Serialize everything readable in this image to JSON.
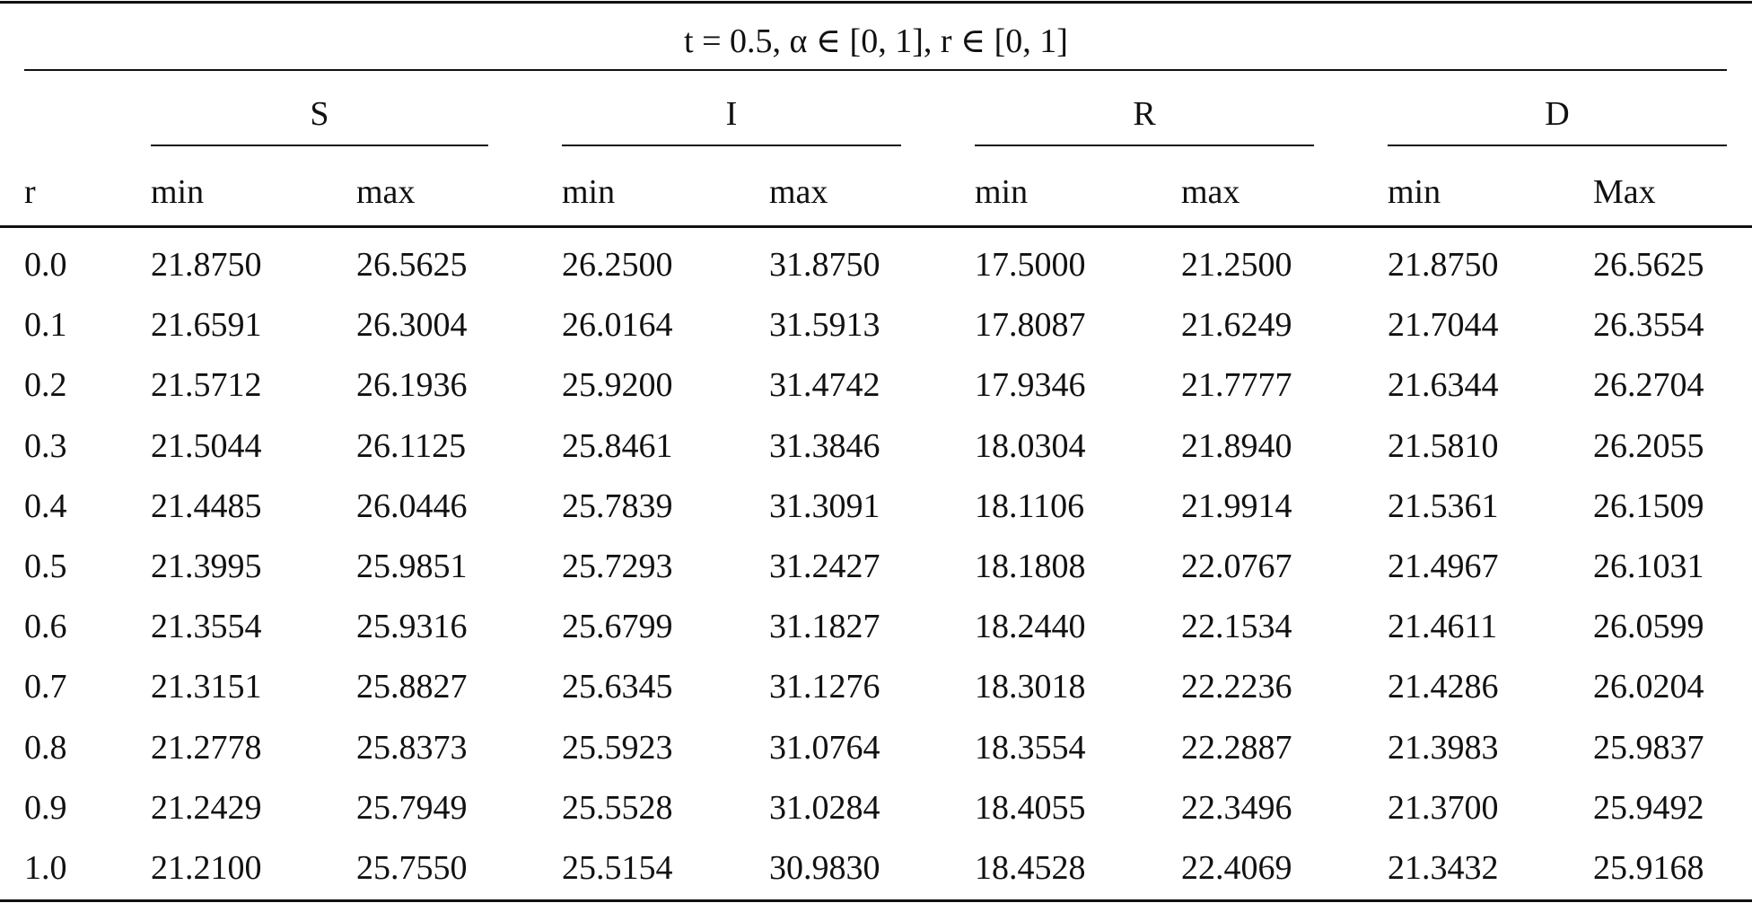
{
  "table": {
    "title": "t = 0.5,  α ∈ [0, 1],  r ∈ [0, 1]",
    "groups": [
      "S",
      "I",
      "R",
      "D"
    ],
    "columns": [
      "r",
      "min",
      "max",
      "min",
      "max",
      "min",
      "max",
      "min",
      "Max"
    ],
    "rows": [
      [
        "0.0",
        "21.8750",
        "26.5625",
        "26.2500",
        "31.8750",
        "17.5000",
        "21.2500",
        "21.8750",
        "26.5625"
      ],
      [
        "0.1",
        "21.6591",
        "26.3004",
        "26.0164",
        "31.5913",
        "17.8087",
        "21.6249",
        "21.7044",
        "26.3554"
      ],
      [
        "0.2",
        "21.5712",
        "26.1936",
        "25.9200",
        "31.4742",
        "17.9346",
        "21.7777",
        "21.6344",
        "26.2704"
      ],
      [
        "0.3",
        "21.5044",
        "26.1125",
        "25.8461",
        "31.3846",
        "18.0304",
        "21.8940",
        "21.5810",
        "26.2055"
      ],
      [
        "0.4",
        "21.4485",
        "26.0446",
        "25.7839",
        "31.3091",
        "18.1106",
        "21.9914",
        "21.5361",
        "26.1509"
      ],
      [
        "0.5",
        "21.3995",
        "25.9851",
        "25.7293",
        "31.2427",
        "18.1808",
        "22.0767",
        "21.4967",
        "26.1031"
      ],
      [
        "0.6",
        "21.3554",
        "25.9316",
        "25.6799",
        "31.1827",
        "18.2440",
        "22.1534",
        "21.4611",
        "26.0599"
      ],
      [
        "0.7",
        "21.3151",
        "25.8827",
        "25.6345",
        "31.1276",
        "18.3018",
        "22.2236",
        "21.4286",
        "26.0204"
      ],
      [
        "0.8",
        "21.2778",
        "25.8373",
        "25.5923",
        "31.0764",
        "18.3554",
        "22.2887",
        "21.3983",
        "25.9837"
      ],
      [
        "0.9",
        "21.2429",
        "25.7949",
        "25.5528",
        "31.0284",
        "18.4055",
        "22.3496",
        "21.3700",
        "25.9492"
      ],
      [
        "1.0",
        "21.2100",
        "25.7550",
        "25.5154",
        "30.9830",
        "18.4528",
        "22.4069",
        "21.3432",
        "25.9168"
      ]
    ]
  }
}
